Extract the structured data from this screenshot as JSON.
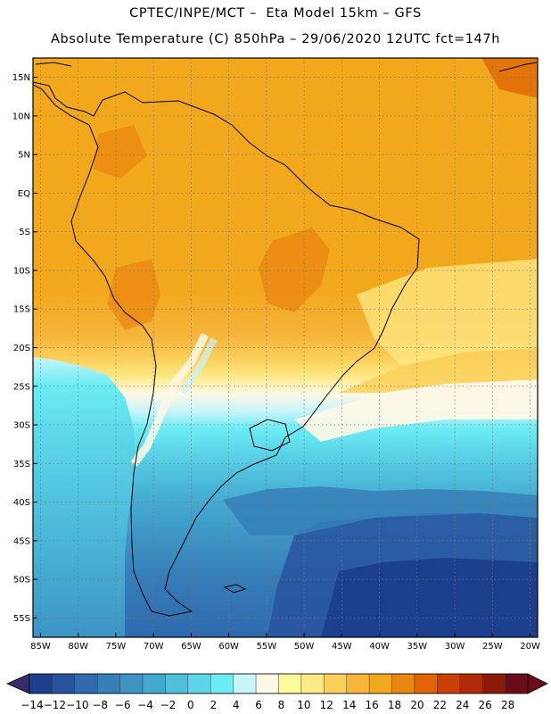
{
  "header": {
    "line1": "CPTEC/INPE/MCT –  Eta Model 15km – GFS",
    "line2": "Absolute Temperature (C) 850hPa – 29/06/2020 12UTC fct=147h"
  },
  "map": {
    "lat_labels": [
      "15N",
      "10N",
      "5N",
      "EQ",
      "5S",
      "10S",
      "15S",
      "20S",
      "25S",
      "30S",
      "35S",
      "40S",
      "45S",
      "50S",
      "55S"
    ],
    "lon_labels": [
      "85W",
      "80W",
      "75W",
      "70W",
      "65W",
      "60W",
      "55W",
      "50W",
      "45W",
      "40W",
      "35W",
      "30W",
      "25W",
      "20W"
    ],
    "lat_range": [
      17.5,
      -57.5
    ],
    "lon_range": [
      -86,
      -19
    ],
    "field": "Absolute Temperature 850hPa",
    "units": "C"
  },
  "colorbar": {
    "labels": [
      "-14",
      "-12",
      "-10",
      "-8",
      "-6",
      "-4",
      "-2",
      "0",
      "2",
      "4",
      "6",
      "8",
      "10",
      "12",
      "14",
      "16",
      "18",
      "20",
      "22",
      "24",
      "26",
      "28"
    ],
    "colors": [
      "#1c3f8e",
      "#28539f",
      "#2f69ae",
      "#367fb9",
      "#3d94c4",
      "#44a9cf",
      "#4fbfdc",
      "#5cd5e8",
      "#6cecf4",
      "#c8f4fa",
      "#fef8e6",
      "#fefa9c",
      "#fde986",
      "#fad05a",
      "#f5b53a",
      "#f2a81c",
      "#e98510",
      "#e06505",
      "#cc4008",
      "#b02a0a",
      "#8a1a0a",
      "#6a0c18"
    ],
    "under_color": "#3a2a6a",
    "over_color": "#6a0c18"
  }
}
